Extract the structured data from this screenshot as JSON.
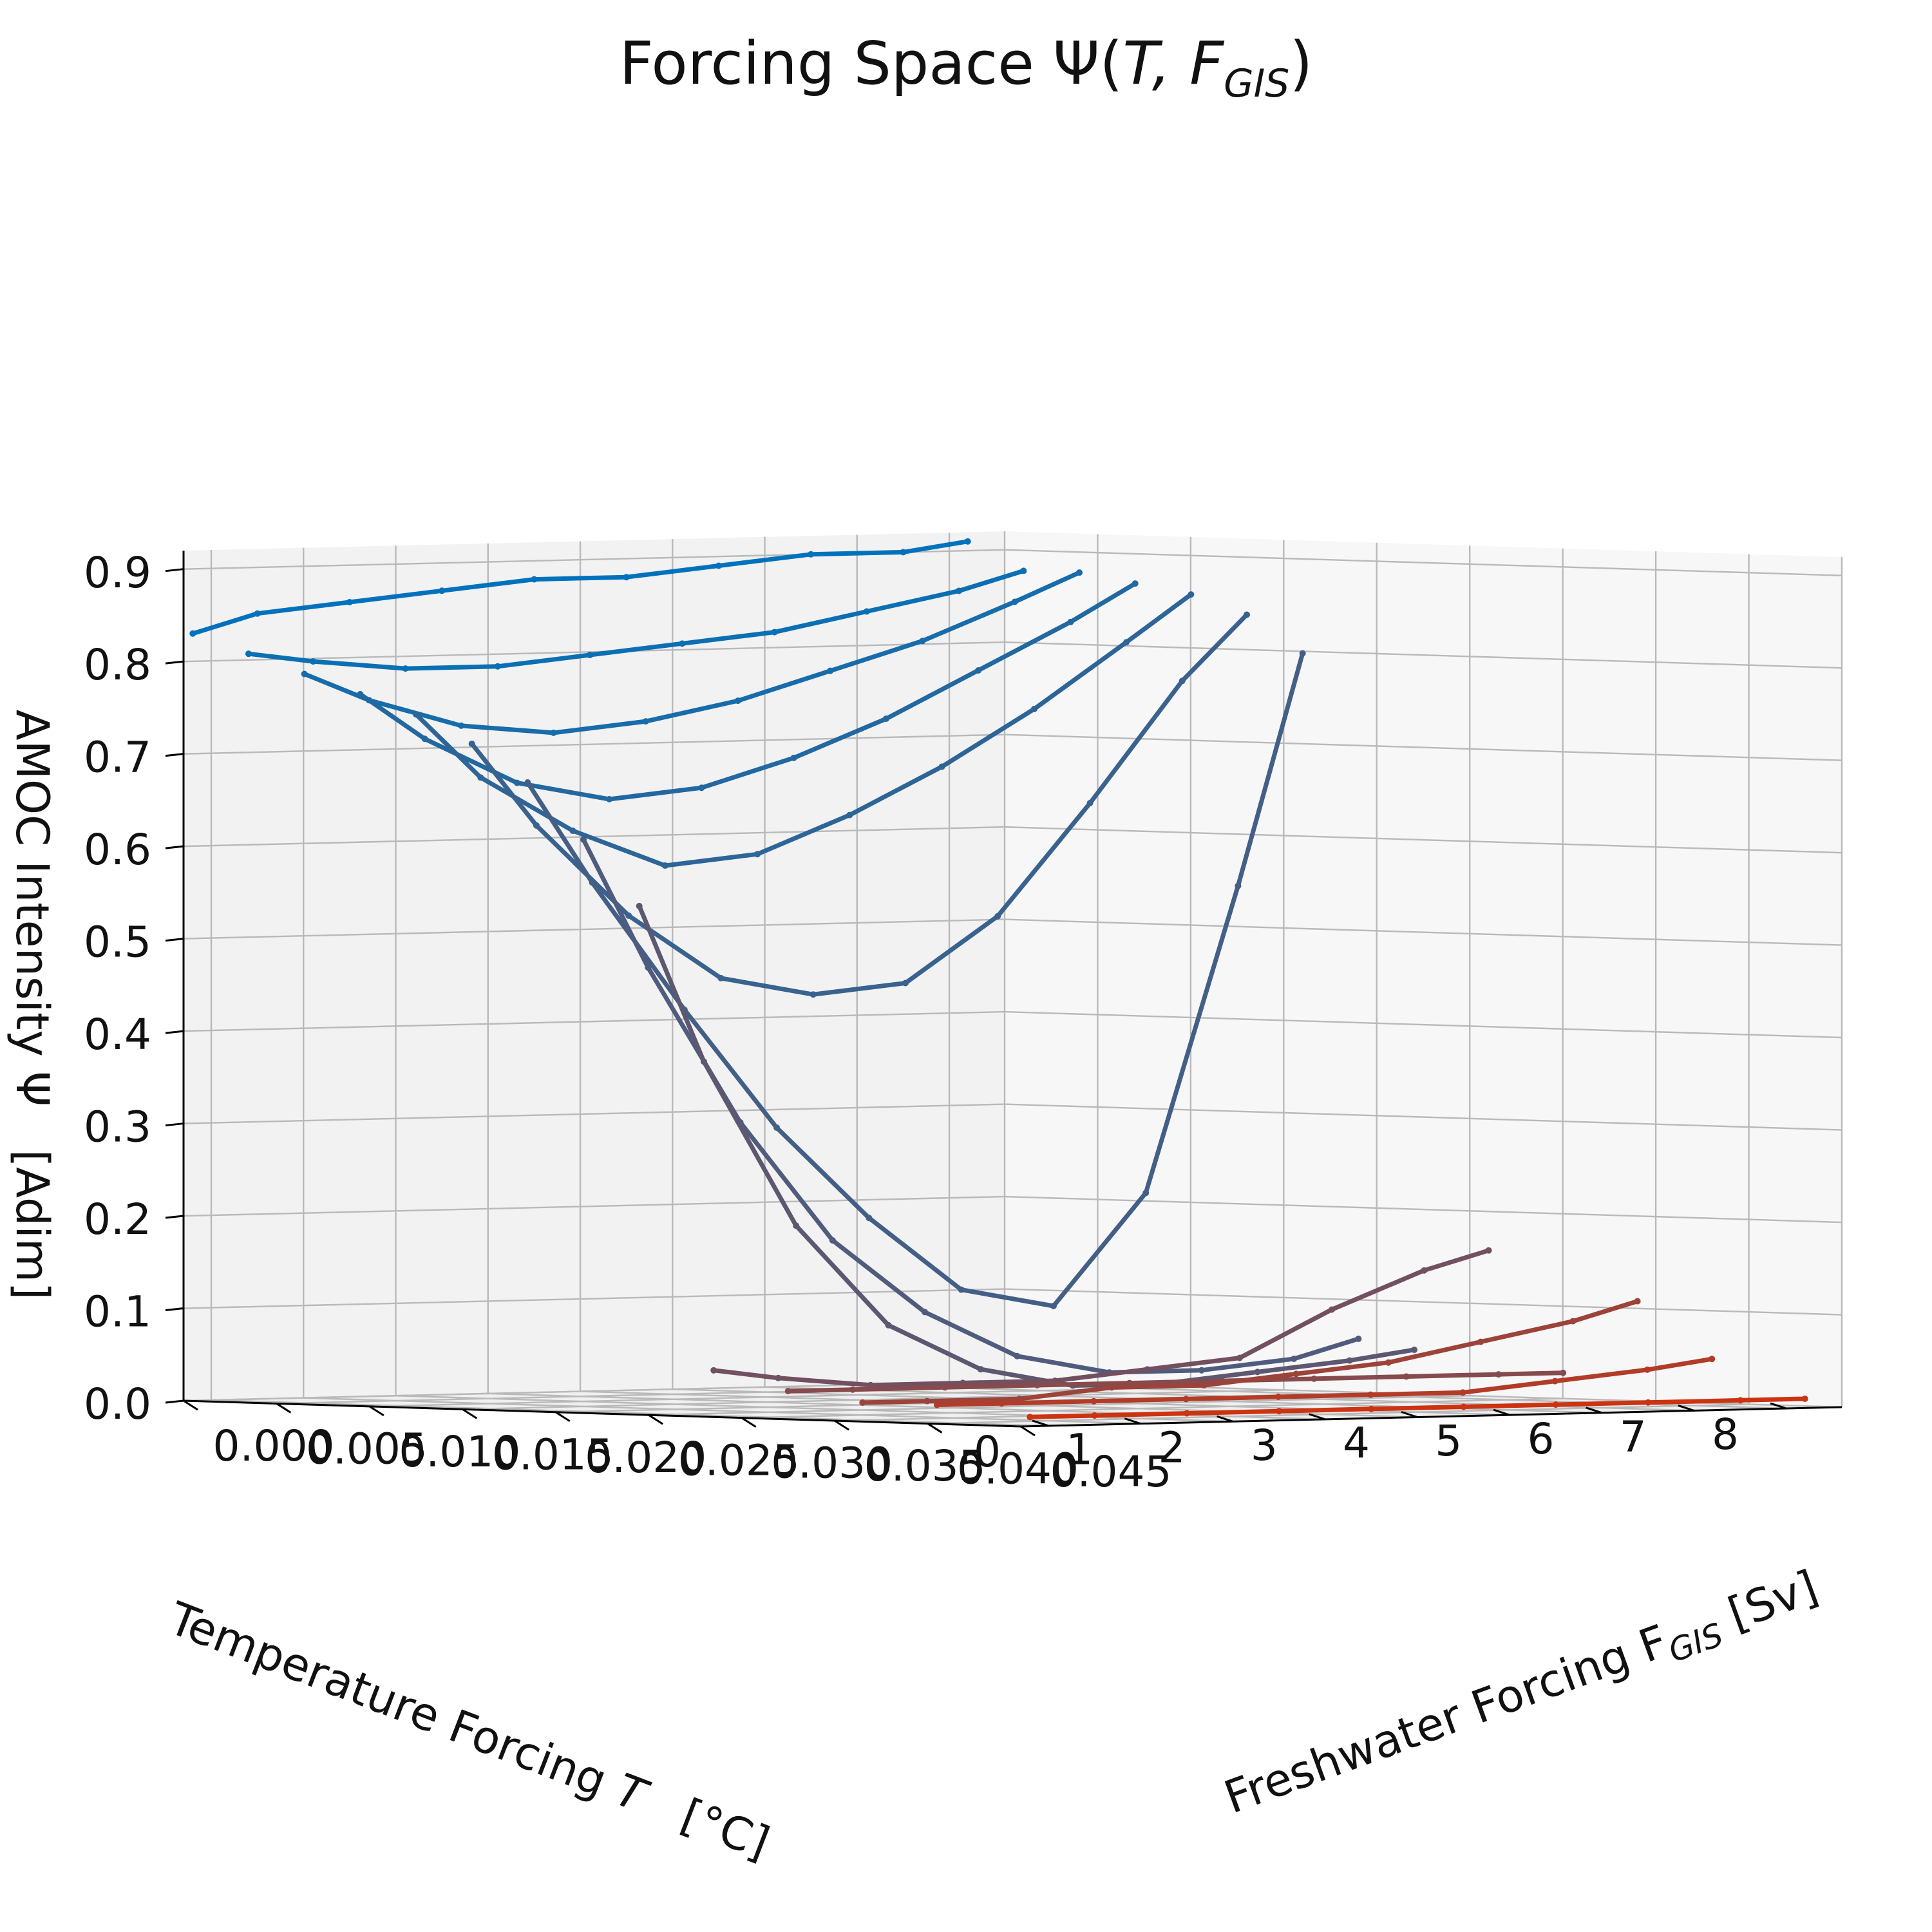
{
  "chart_data": {
    "type": "surface3d",
    "title": "Forcing Space Ψ(T, F_GIS)",
    "title_parts": {
      "prefix": "Forcing Space Ψ(",
      "t": "T",
      "sep": ", F",
      "sub": "GIS",
      "suffix": ")"
    },
    "xlabel": "Temperature Forcing T   [°C]",
    "xlabel_parts": {
      "prefix": "Temperature Forcing ",
      "t": "T",
      "suffix": "   [°C]"
    },
    "ylabel": "Freshwater Forcing F_GIS [Sv]",
    "ylabel_parts": {
      "prefix": "Freshwater Forcing F",
      "sub": "GIS",
      "suffix": " [Sv]"
    },
    "zlabel": "AMOC Intensity Ψ   [Adim]",
    "x_ticks": [
      "0",
      "1",
      "2",
      "3",
      "4",
      "5",
      "6",
      "7",
      "8"
    ],
    "y_ticks": [
      "0.000",
      "0.005",
      "0.010",
      "0.015",
      "0.020",
      "0.025",
      "0.030",
      "0.035",
      "0.040",
      "0.045"
    ],
    "z_ticks": [
      "0.0",
      "0.1",
      "0.2",
      "0.3",
      "0.4",
      "0.5",
      "0.6",
      "0.7",
      "0.8",
      "0.9"
    ],
    "xlim": [
      -0.3,
      8.6
    ],
    "ylim": [
      0.0,
      0.045
    ],
    "zlim": [
      0.0,
      0.92
    ],
    "grid": true,
    "colormap": {
      "low_F": "#0072bd",
      "mid_F": "#555a78",
      "high_F": "#cc3311"
    },
    "series": [
      {
        "F": 0.0,
        "x": [
          -0.2,
          0.5,
          1.5,
          2.5,
          3.5,
          4.5,
          5.5,
          6.5,
          7.5,
          8.2
        ],
        "y": [
          0.83,
          0.85,
          0.86,
          0.87,
          0.88,
          0.88,
          0.89,
          0.9,
          0.9,
          0.91
        ]
      },
      {
        "F": 0.003,
        "x": [
          -0.2,
          0.5,
          1.5,
          2.5,
          3.5,
          4.5,
          5.5,
          6.5,
          7.5,
          8.2
        ],
        "y": [
          0.81,
          0.8,
          0.79,
          0.79,
          0.8,
          0.81,
          0.82,
          0.84,
          0.86,
          0.88
        ]
      },
      {
        "F": 0.006,
        "x": [
          -0.2,
          0.5,
          1.5,
          2.5,
          3.5,
          4.5,
          5.5,
          6.5,
          7.5,
          8.2
        ],
        "y": [
          0.79,
          0.76,
          0.73,
          0.72,
          0.73,
          0.75,
          0.78,
          0.81,
          0.85,
          0.88
        ]
      },
      {
        "F": 0.009,
        "x": [
          -0.2,
          0.5,
          1.5,
          2.5,
          3.5,
          4.5,
          5.5,
          6.5,
          7.5,
          8.2
        ],
        "y": [
          0.77,
          0.72,
          0.67,
          0.65,
          0.66,
          0.69,
          0.73,
          0.78,
          0.83,
          0.87
        ]
      },
      {
        "F": 0.012,
        "x": [
          -0.2,
          0.5,
          1.5,
          2.5,
          3.5,
          4.5,
          5.5,
          6.5,
          7.5,
          8.2
        ],
        "y": [
          0.75,
          0.68,
          0.62,
          0.58,
          0.59,
          0.63,
          0.68,
          0.74,
          0.81,
          0.86
        ]
      },
      {
        "F": 0.015,
        "x": [
          -0.2,
          0.5,
          1.5,
          2.5,
          3.5,
          4.5,
          5.5,
          6.5,
          7.5,
          8.2
        ],
        "y": [
          0.72,
          0.63,
          0.53,
          0.46,
          0.44,
          0.45,
          0.52,
          0.64,
          0.77,
          0.84
        ]
      },
      {
        "F": 0.018,
        "x": [
          -0.2,
          0.5,
          1.5,
          2.5,
          3.5,
          4.5,
          5.5,
          6.5,
          7.5,
          8.2
        ],
        "y": [
          0.68,
          0.57,
          0.43,
          0.3,
          0.2,
          0.12,
          0.1,
          0.22,
          0.55,
          0.8
        ]
      },
      {
        "F": 0.021,
        "x": [
          -0.2,
          0.5,
          1.5,
          2.5,
          3.5,
          4.5,
          5.5,
          6.5,
          7.5,
          8.2
        ],
        "y": [
          0.62,
          0.48,
          0.31,
          0.18,
          0.1,
          0.05,
          0.03,
          0.03,
          0.04,
          0.06
        ]
      },
      {
        "F": 0.024,
        "x": [
          -0.2,
          0.5,
          1.5,
          2.5,
          3.5,
          4.5,
          5.5,
          6.5,
          7.5,
          8.2
        ],
        "y": [
          0.55,
          0.38,
          0.2,
          0.09,
          0.04,
          0.02,
          0.02,
          0.03,
          0.04,
          0.05
        ]
      },
      {
        "F": 0.028,
        "x": [
          -0.2,
          0.5,
          1.5,
          2.5,
          3.5,
          4.5,
          5.5,
          6.5,
          7.5,
          8.2
        ],
        "y": [
          0.05,
          0.04,
          0.03,
          0.03,
          0.03,
          0.04,
          0.05,
          0.1,
          0.14,
          0.16
        ]
      },
      {
        "F": 0.032,
        "x": [
          -0.2,
          0.5,
          1.5,
          2.5,
          3.5,
          4.5,
          5.5,
          6.5,
          7.5,
          8.2
        ],
        "y": [
          0.03,
          0.03,
          0.03,
          0.03,
          0.03,
          0.03,
          0.03,
          0.03,
          0.03,
          0.03
        ]
      },
      {
        "F": 0.036,
        "x": [
          -0.2,
          0.5,
          1.5,
          2.5,
          3.5,
          4.5,
          5.5,
          6.5,
          7.5,
          8.2
        ],
        "y": [
          0.02,
          0.02,
          0.02,
          0.03,
          0.03,
          0.04,
          0.05,
          0.07,
          0.09,
          0.11
        ]
      },
      {
        "F": 0.04,
        "x": [
          -0.2,
          0.5,
          1.5,
          2.5,
          3.5,
          4.5,
          5.5,
          6.5,
          7.5,
          8.2
        ],
        "y": [
          0.02,
          0.02,
          0.02,
          0.02,
          0.02,
          0.02,
          0.02,
          0.03,
          0.04,
          0.05
        ]
      },
      {
        "F": 0.045,
        "x": [
          -0.2,
          0.5,
          1.5,
          2.5,
          3.5,
          4.5,
          5.5,
          6.5,
          7.5,
          8.2
        ],
        "y": [
          0.01,
          0.01,
          0.01,
          0.01,
          0.01,
          0.01,
          0.01,
          0.01,
          0.01,
          0.01
        ]
      }
    ]
  }
}
